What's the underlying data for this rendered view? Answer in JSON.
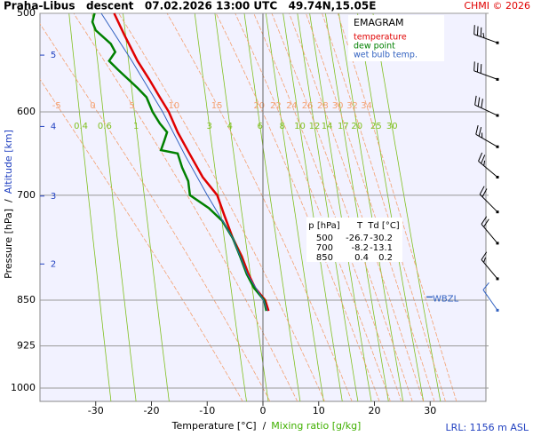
{
  "chart_data": {
    "type": "emagram",
    "title": "Praha-Libus   descent   07.02.2026 13:00 UTC   49.74N,15.05E",
    "credit": "CHMI © 2026",
    "xlabel": "Temperature [°C]  /",
    "xlabel2": "Mixing ratio [g/kg]",
    "ylabel": "Pressure [hPa]  /",
    "ylabel2": "Altitude [km]",
    "xlim": [
      -40,
      40
    ],
    "xticks": [
      -30,
      -20,
      -10,
      0,
      10,
      20,
      30
    ],
    "ylim": [
      500,
      1025
    ],
    "yticks": [
      500,
      600,
      700,
      850,
      925,
      1000
    ],
    "ylog": true,
    "isotherm": 0,
    "altitude_ticks": [
      2,
      3,
      4,
      5
    ],
    "legend_title": "EMAGRAM",
    "series": [
      {
        "name": "temperature",
        "color": "#e00000",
        "y": [
          500,
          520,
          546,
          565,
          584,
          600,
          623,
          648,
          677,
          700,
          727,
          758,
          784,
          810,
          831,
          850,
          867
        ],
        "x": [
          -26.7,
          -24.9,
          -22.5,
          -20.4,
          -18.5,
          -16.9,
          -15.3,
          -13.2,
          -10.8,
          -8.2,
          -6.9,
          -5.4,
          -3.8,
          -2.6,
          -1.4,
          0.4,
          1.0
        ]
      },
      {
        "name": "dew point",
        "color": "#008000",
        "y": [
          500,
          508,
          516,
          529,
          537,
          546,
          555,
          574,
          584,
          600,
          613,
          623,
          633,
          644,
          648,
          665,
          682,
          700,
          717,
          734,
          758,
          784,
          810,
          831,
          850,
          867
        ],
        "x": [
          -30.2,
          -30.6,
          -30.0,
          -27.3,
          -26.5,
          -27.6,
          -26.0,
          -22.5,
          -20.9,
          -19.8,
          -18.5,
          -17.2,
          -17.7,
          -18.3,
          -15.3,
          -14.5,
          -13.4,
          -13.1,
          -9.7,
          -7.3,
          -5.4,
          -4.1,
          -2.9,
          -1.6,
          0.2,
          0.6
        ]
      },
      {
        "name": "wet bulb temp.",
        "color": "#3060c0",
        "y": [
          500,
          546,
          600,
          650,
          700,
          758,
          810,
          850,
          867
        ],
        "x": [
          -29.0,
          -23.5,
          -18.0,
          -14.0,
          -10.0,
          -5.4,
          -2.8,
          0.1,
          0.8
        ]
      }
    ],
    "pseudoadiabats": {
      "color": "#f4a070",
      "values": [
        -5,
        0,
        5,
        10,
        15,
        20,
        22,
        24,
        26,
        28,
        30,
        32,
        34
      ]
    },
    "mixing_ratios": {
      "color": "#80c020",
      "values": [
        0.4,
        0.6,
        1,
        3,
        4,
        6,
        8,
        10,
        12,
        14,
        17,
        20,
        25,
        30
      ]
    },
    "wbzl": {
      "label": "WBZL",
      "pressure": 845,
      "color": "#3060c0"
    },
    "winds": {
      "pressure": [
        528,
        565,
        604,
        640,
        677,
        722,
        765,
        817,
        866
      ],
      "direction": [
        290,
        290,
        295,
        300,
        310,
        315,
        320,
        320,
        325
      ],
      "speed": [
        35,
        30,
        30,
        25,
        25,
        20,
        20,
        15,
        10
      ]
    },
    "footer": "LRL: 1156 m ASL"
  },
  "table": {
    "header": [
      "p [hPa]",
      "T",
      "Td [°C]"
    ],
    "rows": [
      [
        500,
        -26.7,
        -30.2
      ],
      [
        700,
        -8.2,
        -13.1
      ],
      [
        850,
        0.4,
        0.2
      ]
    ]
  }
}
